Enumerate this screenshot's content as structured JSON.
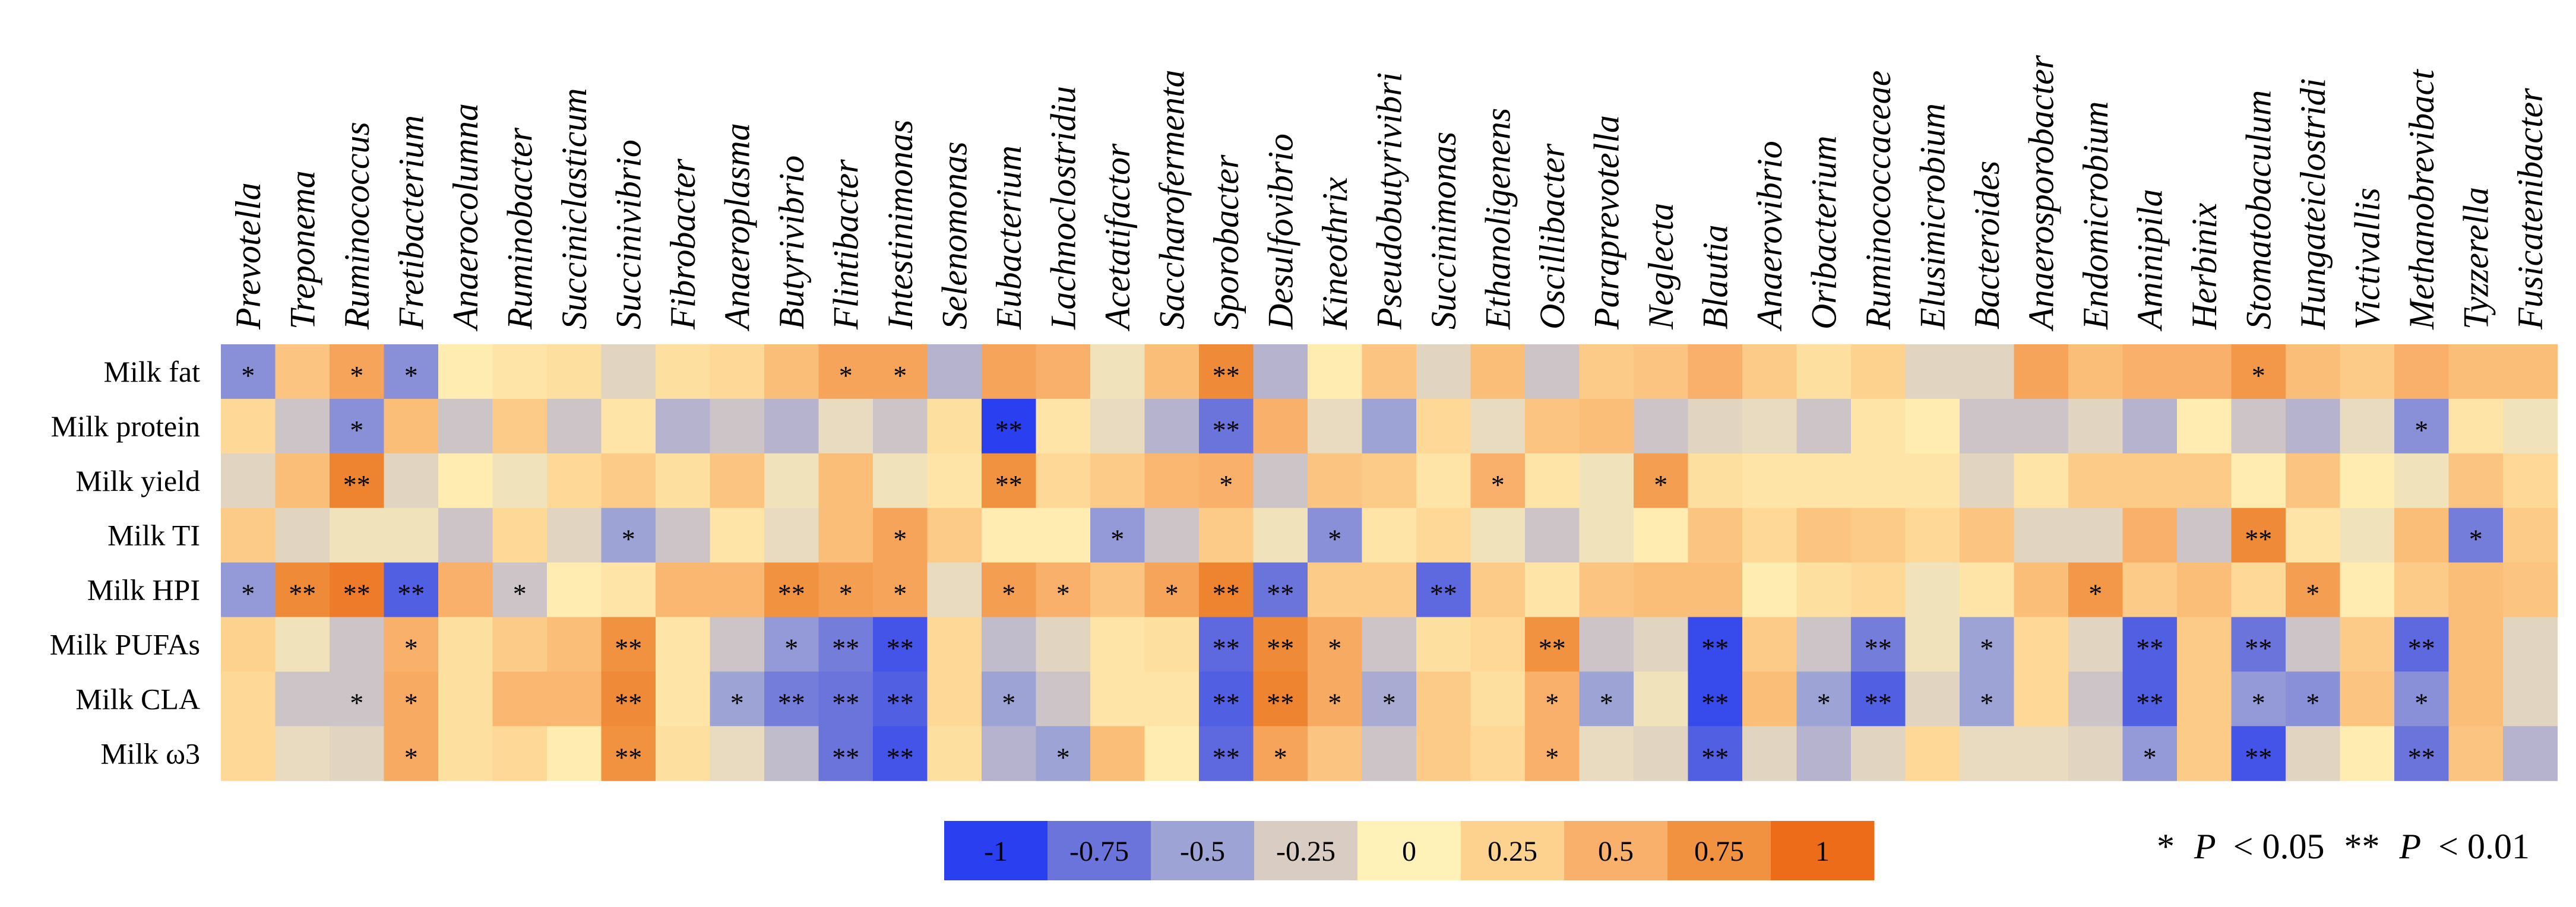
{
  "chart_data": {
    "type": "heatmap",
    "title": "",
    "xlabel": "",
    "ylabel": "",
    "columns": [
      "Prevotella",
      "Treponema",
      "Ruminococcus",
      "Fretibacterium",
      "Anaerocolumna",
      "Ruminobacter",
      "Succiniclasticum",
      "Succinivibrio",
      "Fibrobacter",
      "Anaeroplasma",
      "Butyrivibrio",
      "Flintibacter",
      "Intestinimonas",
      "Selenomonas",
      "Eubacterium",
      "Lachnoclostridiu",
      "Acetatifactor",
      "Saccharofermenta",
      "Sporobacter",
      "Desulfovibrio",
      "Kineothrix",
      "Pseudobutyrivibri",
      "Succinimonas",
      "Ethanoligenens",
      "Oscillibacter",
      "Paraprevotella",
      "Neglecta",
      "Blautia",
      "Anaerovibrio",
      "Oribacterium",
      "Ruminococcaceae",
      "Elusimicrobium",
      "Bacteroides",
      "Anaerosporobacter",
      "Endomicrobium",
      "Aminipila",
      "Herbinix",
      "Stomatobaculum",
      "Hungateiclostridi",
      "Victivallis",
      "Methanobrevibact",
      "Tyzzerella",
      "Fusicatenibacter"
    ],
    "rows": [
      "Milk fat",
      "Milk protein",
      "Milk yield",
      "Milk TI",
      "Milk HPI",
      "Milk PUFAs",
      "Milk CLA",
      "Milk ω3"
    ],
    "values": [
      [
        -0.6,
        0.35,
        0.6,
        -0.6,
        0.05,
        0.1,
        0.15,
        -0.2,
        0.15,
        0.2,
        0.4,
        0.6,
        0.6,
        -0.4,
        0.6,
        0.5,
        -0.1,
        0.4,
        0.8,
        -0.4,
        0.05,
        0.35,
        -0.2,
        0.4,
        -0.3,
        0.3,
        0.35,
        0.5,
        0.3,
        0.15,
        0.25,
        -0.2,
        -0.2,
        0.6,
        0.4,
        0.5,
        0.5,
        0.7,
        0.4,
        0.3,
        0.5,
        0.4,
        0.4
      ],
      [
        0.2,
        -0.3,
        -0.6,
        0.4,
        -0.3,
        0.3,
        -0.3,
        0.1,
        -0.4,
        -0.3,
        -0.4,
        -0.15,
        -0.3,
        0.15,
        -1.0,
        0.1,
        -0.15,
        -0.4,
        -0.75,
        0.5,
        -0.15,
        -0.5,
        0.2,
        -0.15,
        0.35,
        0.4,
        -0.3,
        -0.2,
        -0.15,
        -0.3,
        0.1,
        0.05,
        -0.3,
        -0.3,
        -0.2,
        -0.4,
        0.05,
        -0.3,
        -0.4,
        -0.15,
        -0.6,
        0.1,
        -0.1
      ],
      [
        -0.2,
        0.4,
        0.85,
        -0.2,
        0.05,
        -0.1,
        0.2,
        0.3,
        0.15,
        0.35,
        -0.1,
        0.4,
        -0.1,
        0.1,
        0.75,
        0.2,
        0.3,
        0.45,
        0.5,
        -0.3,
        0.35,
        0.3,
        0.1,
        0.5,
        0.1,
        -0.1,
        0.65,
        0.15,
        0.1,
        0.1,
        0.1,
        0.1,
        -0.2,
        0.1,
        0.3,
        0.3,
        0.3,
        0.05,
        0.35,
        0.05,
        -0.1,
        0.35,
        0.2
      ],
      [
        0.3,
        -0.2,
        -0.1,
        -0.1,
        -0.3,
        0.2,
        -0.2,
        -0.5,
        -0.3,
        0.1,
        -0.15,
        0.4,
        0.6,
        0.3,
        0.05,
        0.05,
        -0.55,
        -0.3,
        0.3,
        -0.1,
        -0.6,
        0.1,
        0.2,
        -0.1,
        -0.3,
        -0.1,
        0.05,
        0.35,
        0.2,
        0.35,
        0.3,
        0.2,
        0.35,
        -0.2,
        -0.2,
        0.5,
        -0.3,
        0.8,
        0.1,
        -0.1,
        0.4,
        -0.7,
        0.3
      ],
      [
        -0.55,
        0.8,
        0.9,
        -0.85,
        0.5,
        -0.3,
        0.05,
        0.1,
        0.45,
        0.45,
        0.75,
        0.65,
        0.6,
        -0.15,
        0.65,
        0.5,
        0.35,
        0.6,
        0.85,
        -0.75,
        0.3,
        0.3,
        -0.8,
        0.3,
        0.1,
        0.35,
        0.4,
        0.4,
        0.05,
        0.15,
        0.2,
        -0.1,
        0.1,
        0.4,
        0.7,
        0.3,
        0.4,
        0.2,
        0.65,
        0.05,
        0.3,
        0.4,
        0.35
      ],
      [
        0.25,
        -0.1,
        -0.3,
        0.5,
        0.15,
        0.3,
        0.4,
        0.75,
        0.1,
        -0.3,
        -0.55,
        -0.7,
        -0.9,
        0.2,
        -0.35,
        -0.2,
        0.1,
        0.15,
        -0.8,
        0.8,
        0.55,
        -0.3,
        0.15,
        0.2,
        0.75,
        -0.3,
        -0.2,
        -0.95,
        0.3,
        -0.3,
        -0.7,
        -0.1,
        -0.5,
        0.2,
        -0.2,
        -0.85,
        0.3,
        -0.75,
        -0.3,
        0.3,
        -0.8,
        0.4,
        -0.2
      ],
      [
        0.2,
        -0.3,
        -0.3,
        0.55,
        0.15,
        0.45,
        0.45,
        0.8,
        0.1,
        -0.5,
        -0.7,
        -0.75,
        -0.85,
        0.2,
        -0.5,
        -0.3,
        0.1,
        0.1,
        -0.85,
        0.85,
        0.55,
        -0.45,
        0.3,
        0.15,
        0.5,
        -0.5,
        -0.1,
        -0.95,
        0.4,
        -0.5,
        -0.85,
        -0.2,
        -0.5,
        0.2,
        -0.3,
        -0.85,
        0.3,
        -0.55,
        -0.6,
        0.35,
        -0.6,
        0.4,
        -0.2
      ],
      [
        0.2,
        -0.15,
        -0.2,
        0.55,
        0.15,
        0.2,
        0.05,
        0.75,
        0.15,
        -0.15,
        -0.35,
        -0.75,
        -0.9,
        0.15,
        -0.4,
        -0.5,
        0.4,
        0.05,
        -0.8,
        0.6,
        0.35,
        -0.3,
        0.3,
        0.2,
        0.5,
        -0.15,
        -0.2,
        -0.85,
        -0.2,
        -0.4,
        -0.2,
        0.2,
        -0.15,
        -0.15,
        -0.2,
        -0.55,
        0.3,
        -0.9,
        -0.2,
        0.05,
        -0.75,
        0.35,
        -0.4
      ]
    ],
    "significance": [
      [
        "*",
        "",
        "*",
        "*",
        "",
        "",
        "",
        "",
        "",
        "",
        "",
        "*",
        "*",
        "",
        "",
        "",
        "",
        "",
        "**",
        "",
        "",
        "",
        "",
        "",
        "",
        "",
        "",
        "",
        "",
        "",
        "",
        "",
        "",
        "",
        "",
        "",
        "",
        "*",
        "",
        "",
        "",
        "",
        ""
      ],
      [
        "",
        "",
        "*",
        "",
        "",
        "",
        "",
        "",
        "",
        "",
        "",
        "",
        "",
        "",
        "**",
        "",
        "",
        "",
        "**",
        "",
        "",
        "",
        "",
        "",
        "",
        "",
        "",
        "",
        "",
        "",
        "",
        "",
        "",
        "",
        "",
        "",
        "",
        "",
        "",
        "",
        "*",
        "",
        ""
      ],
      [
        "",
        "",
        "**",
        "",
        "",
        "",
        "",
        "",
        "",
        "",
        "",
        "",
        "",
        "",
        "**",
        "",
        "",
        "",
        "*",
        "",
        "",
        "",
        "",
        "*",
        "",
        "",
        "*",
        "",
        "",
        "",
        "",
        "",
        "",
        "",
        "",
        "",
        "",
        "",
        "",
        "",
        "",
        "",
        ""
      ],
      [
        "",
        "",
        "",
        "",
        "",
        "",
        "",
        "*",
        "",
        "",
        "",
        "",
        "*",
        "",
        "",
        "",
        "*",
        "",
        "",
        "",
        "*",
        "",
        "",
        "",
        "",
        "",
        "",
        "",
        "",
        "",
        "",
        "",
        "",
        "",
        "",
        "",
        "",
        "**",
        "",
        "",
        "",
        "*",
        ""
      ],
      [
        "*",
        "**",
        "**",
        "**",
        "",
        "*",
        "",
        "",
        "",
        "",
        "**",
        "*",
        "*",
        "",
        "*",
        "*",
        "",
        "*",
        "**",
        "**",
        "",
        "",
        "**",
        "",
        "",
        "",
        "",
        "",
        "",
        "",
        "",
        "",
        "",
        "",
        "*",
        "",
        "",
        "",
        "*",
        "",
        "",
        "",
        ""
      ],
      [
        "",
        "",
        "",
        "*",
        "",
        "",
        "",
        "**",
        "",
        "",
        "*",
        "**",
        "**",
        "",
        "",
        "",
        "",
        "",
        "**",
        "**",
        "*",
        "",
        "",
        "",
        "**",
        "",
        "",
        "**",
        "",
        "",
        "**",
        "",
        "*",
        "",
        "",
        "**",
        "",
        "**",
        "",
        "",
        "**",
        "",
        ""
      ],
      [
        "",
        "",
        "*",
        "*",
        "",
        "",
        "",
        "**",
        "",
        "*",
        "**",
        "**",
        "**",
        "",
        "*",
        "",
        "",
        "",
        "**",
        "**",
        "*",
        "*",
        "",
        "",
        "*",
        "*",
        "",
        "**",
        "",
        "*",
        "**",
        "",
        "*",
        "",
        "",
        "**",
        "",
        "*",
        "*",
        "",
        "*",
        "",
        ""
      ],
      [
        "",
        "",
        "",
        "*",
        "",
        "",
        "",
        "**",
        "",
        "",
        "",
        "**",
        "**",
        "",
        "",
        "*",
        "",
        "",
        "**",
        "*",
        "",
        "",
        "",
        "",
        "*",
        "",
        "",
        "**",
        "",
        "",
        "",
        "",
        "",
        "",
        "",
        "*",
        "",
        "**",
        "",
        "",
        "**",
        "",
        ""
      ]
    ],
    "color_scale": {
      "min": -1,
      "max": 1,
      "stops": [
        {
          "value": -1,
          "color": "#2a3ff0"
        },
        {
          "value": -0.75,
          "color": "#6b74db"
        },
        {
          "value": -0.5,
          "color": "#9ea3d6"
        },
        {
          "value": -0.25,
          "color": "#d9ccc3"
        },
        {
          "value": 0,
          "color": "#fff2b8"
        },
        {
          "value": 0.25,
          "color": "#fcd28e"
        },
        {
          "value": 0.5,
          "color": "#f9b06b"
        },
        {
          "value": 0.75,
          "color": "#f0923f"
        },
        {
          "value": 1,
          "color": "#ec6c1a"
        }
      ]
    },
    "legend": {
      "labels": [
        "-1",
        "-0.75",
        "-0.5",
        "-0.25",
        "0",
        "0.25",
        "0.5",
        "0.75",
        "1"
      ],
      "placement": "bottom-center"
    },
    "significance_note": {
      "star1": "*",
      "star2": "**",
      "p_symbol": "P",
      "text1": "< 0.05",
      "text2": "< 0.01",
      "placement": "bottom-right"
    }
  }
}
